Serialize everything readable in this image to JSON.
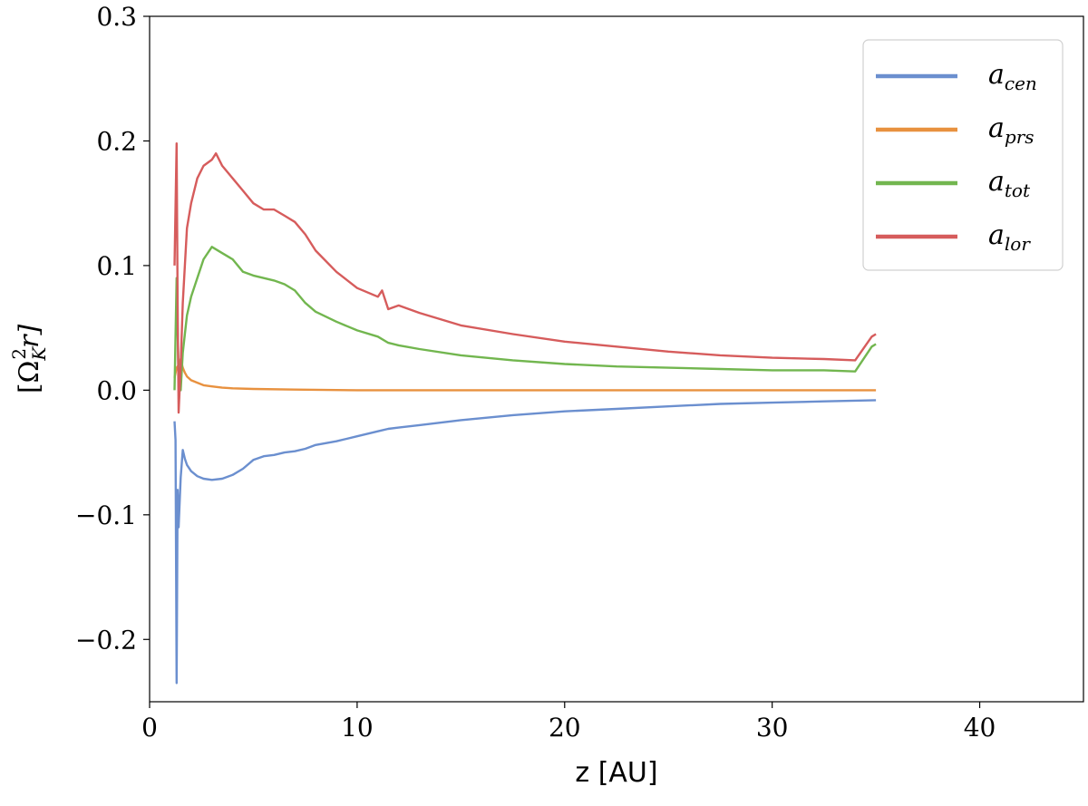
{
  "chart_data": {
    "type": "line",
    "title": "",
    "xlabel": "z [AU]",
    "ylabel_parts": {
      "base": "[Ω",
      "sup": "2",
      "sub": "K",
      "tail": "r]"
    },
    "xlim": [
      0,
      45
    ],
    "ylim": [
      -0.25,
      0.3
    ],
    "xticks": [
      0,
      10,
      20,
      30,
      40
    ],
    "xtick_labels": [
      "0",
      "10",
      "20",
      "30",
      "40"
    ],
    "yticks": [
      -0.2,
      -0.1,
      0.0,
      0.1,
      0.2,
      0.3
    ],
    "ytick_labels": [
      "−0.2",
      "−0.1",
      "0.0",
      "0.1",
      "0.2",
      "0.3"
    ],
    "grid": false,
    "legend": {
      "position": "top-right",
      "entries": [
        {
          "base": "a",
          "sub": "cen",
          "color": "#6b8fcf"
        },
        {
          "base": "a",
          "sub": "prs",
          "color": "#e8913f"
        },
        {
          "base": "a",
          "sub": "tot",
          "color": "#72b64f"
        },
        {
          "base": "a",
          "sub": "lor",
          "color": "#d65c5c"
        }
      ]
    },
    "series": [
      {
        "key": "cen",
        "color": "#6b8fcf",
        "x": [
          1.2,
          1.25,
          1.3,
          1.35,
          1.4,
          1.5,
          1.6,
          1.7,
          1.8,
          2.0,
          2.3,
          2.6,
          3.0,
          3.5,
          4.0,
          4.5,
          5.0,
          5.5,
          6.0,
          6.5,
          7.0,
          7.5,
          8.0,
          9.0,
          10.0,
          11.0,
          11.5,
          12.0,
          13.0,
          15.0,
          17.5,
          20.0,
          22.5,
          25.0,
          27.5,
          30.0,
          32.5,
          35.0
        ],
        "y": [
          -0.025,
          -0.04,
          -0.235,
          -0.08,
          -0.11,
          -0.07,
          -0.048,
          -0.055,
          -0.06,
          -0.065,
          -0.069,
          -0.071,
          -0.072,
          -0.071,
          -0.068,
          -0.063,
          -0.056,
          -0.053,
          -0.052,
          -0.05,
          -0.049,
          -0.047,
          -0.044,
          -0.041,
          -0.037,
          -0.033,
          -0.031,
          -0.03,
          -0.028,
          -0.024,
          -0.02,
          -0.017,
          -0.015,
          -0.013,
          -0.011,
          -0.01,
          -0.009,
          -0.008
        ]
      },
      {
        "key": "prs",
        "color": "#e8913f",
        "x": [
          1.2,
          1.3,
          1.4,
          1.5,
          1.6,
          1.7,
          1.8,
          2.0,
          2.3,
          2.6,
          3.0,
          3.5,
          4.0,
          5.0,
          7.0,
          10.0,
          15.0,
          20.0,
          25.0,
          30.0,
          35.0
        ],
        "y": [
          0.01,
          0.018,
          0.02,
          0.025,
          0.018,
          0.014,
          0.011,
          0.008,
          0.006,
          0.004,
          0.003,
          0.002,
          0.0015,
          0.001,
          0.0005,
          0.0,
          0.0,
          0.0,
          0.0,
          0.0,
          0.0
        ]
      },
      {
        "key": "tot",
        "color": "#72b64f",
        "x": [
          1.2,
          1.3,
          1.4,
          1.5,
          1.6,
          1.7,
          1.8,
          2.0,
          2.3,
          2.6,
          3.0,
          3.5,
          4.0,
          4.5,
          5.0,
          5.5,
          6.0,
          6.5,
          7.0,
          7.5,
          8.0,
          9.0,
          10.0,
          11.0,
          11.5,
          12.0,
          13.0,
          15.0,
          17.5,
          20.0,
          22.5,
          25.0,
          27.5,
          30.0,
          32.5,
          34.0,
          34.8,
          35.0
        ],
        "y": [
          0.0,
          0.09,
          0.01,
          0.0,
          0.03,
          0.045,
          0.06,
          0.075,
          0.09,
          0.105,
          0.115,
          0.11,
          0.105,
          0.095,
          0.092,
          0.09,
          0.088,
          0.085,
          0.08,
          0.07,
          0.063,
          0.055,
          0.048,
          0.043,
          0.038,
          0.036,
          0.033,
          0.028,
          0.024,
          0.021,
          0.019,
          0.018,
          0.017,
          0.016,
          0.016,
          0.015,
          0.035,
          0.037
        ]
      },
      {
        "key": "lor",
        "color": "#d65c5c",
        "x": [
          1.2,
          1.3,
          1.35,
          1.4,
          1.5,
          1.6,
          1.7,
          1.8,
          2.0,
          2.3,
          2.6,
          3.0,
          3.2,
          3.5,
          4.0,
          4.5,
          5.0,
          5.5,
          6.0,
          6.5,
          7.0,
          7.5,
          8.0,
          9.0,
          10.0,
          11.0,
          11.2,
          11.5,
          12.0,
          13.0,
          15.0,
          17.5,
          20.0,
          22.5,
          25.0,
          27.5,
          30.0,
          32.5,
          34.0,
          34.8,
          35.0
        ],
        "y": [
          0.1,
          0.198,
          0.07,
          -0.018,
          0.02,
          0.07,
          0.1,
          0.13,
          0.15,
          0.17,
          0.18,
          0.185,
          0.19,
          0.18,
          0.17,
          0.16,
          0.15,
          0.145,
          0.145,
          0.14,
          0.135,
          0.125,
          0.112,
          0.095,
          0.082,
          0.075,
          0.08,
          0.065,
          0.068,
          0.062,
          0.052,
          0.045,
          0.039,
          0.035,
          0.031,
          0.028,
          0.026,
          0.025,
          0.024,
          0.043,
          0.045
        ]
      }
    ]
  }
}
